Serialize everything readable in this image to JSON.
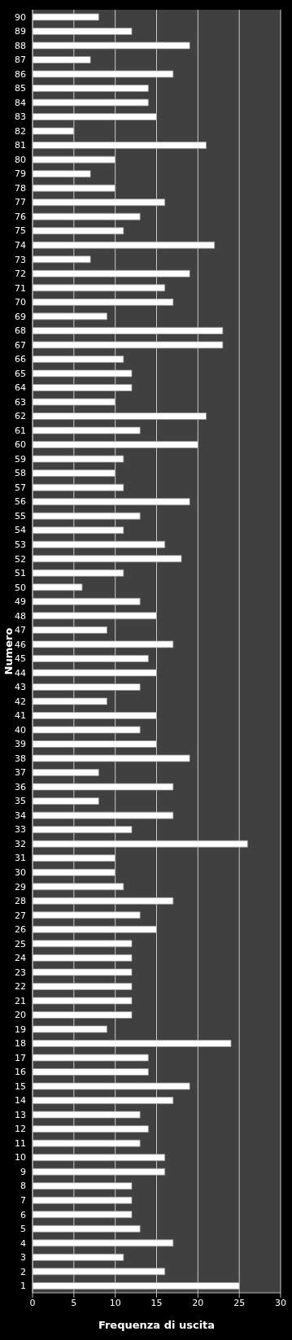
{
  "chart_data": {
    "type": "bar",
    "orientation": "horizontal",
    "xlabel": "Frequenza di uscita",
    "ylabel": "Numero",
    "categories": [
      "90",
      "89",
      "88",
      "87",
      "86",
      "85",
      "84",
      "83",
      "82",
      "81",
      "80",
      "79",
      "78",
      "77",
      "76",
      "75",
      "74",
      "73",
      "72",
      "71",
      "70",
      "69",
      "68",
      "67",
      "66",
      "65",
      "64",
      "63",
      "62",
      "61",
      "60",
      "59",
      "58",
      "57",
      "56",
      "55",
      "54",
      "53",
      "52",
      "51",
      "50",
      "49",
      "48",
      "47",
      "46",
      "45",
      "44",
      "43",
      "42",
      "41",
      "40",
      "39",
      "38",
      "37",
      "36",
      "35",
      "34",
      "33",
      "32",
      "31",
      "30",
      "29",
      "28",
      "27",
      "26",
      "25",
      "24",
      "23",
      "22",
      "21",
      "20",
      "19",
      "18",
      "17",
      "16",
      "15",
      "14",
      "13",
      "12",
      "11",
      "10",
      "9",
      "8",
      "7",
      "6",
      "5",
      "4",
      "3",
      "2",
      "1"
    ],
    "values": [
      8,
      12,
      19,
      7,
      17,
      14,
      14,
      15,
      5,
      21,
      10,
      7,
      10,
      16,
      13,
      11,
      22,
      7,
      19,
      16,
      17,
      9,
      23,
      23,
      11,
      12,
      12,
      10,
      21,
      13,
      20,
      11,
      10,
      11,
      19,
      13,
      11,
      16,
      18,
      11,
      6,
      13,
      15,
      9,
      17,
      14,
      15,
      13,
      9,
      15,
      13,
      15,
      19,
      8,
      17,
      8,
      17,
      12,
      26,
      10,
      10,
      11,
      17,
      13,
      15,
      12,
      12,
      12,
      12,
      12,
      12,
      9,
      24,
      14,
      14,
      19,
      17,
      13,
      14,
      13,
      16,
      16,
      12,
      12,
      12,
      13,
      17,
      11,
      16,
      25
    ],
    "color": "#ffffff",
    "xlim": [
      0,
      30
    ],
    "xticks": [
      0,
      5,
      10,
      15,
      20,
      25,
      30
    ],
    "grid": "x"
  }
}
